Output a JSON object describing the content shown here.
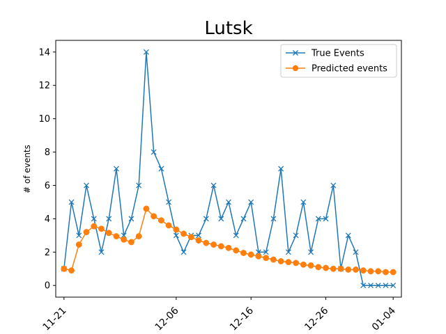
{
  "chart_data": {
    "type": "line",
    "title": "Lutsk",
    "xlabel": "",
    "ylabel": "# of events",
    "ylim": [
      -0.7,
      14.7
    ],
    "x_start": "2023-11-21",
    "x_tick_labels": [
      "11-21",
      "12-06",
      "12-16",
      "12-26",
      "01-04"
    ],
    "x_tick_dates": [
      "2023-11-21",
      "2023-12-06",
      "2023-12-16",
      "2023-12-26",
      "2024-01-04"
    ],
    "y_ticks": [
      0,
      2,
      4,
      6,
      8,
      10,
      12,
      14
    ],
    "grid": false,
    "legend_position": "top-right",
    "series": [
      {
        "name": "True Events",
        "color": "#1f77b4",
        "marker": "x",
        "values": [
          1,
          5,
          3,
          6,
          4,
          2,
          4,
          7,
          3,
          4,
          6,
          14,
          8,
          7,
          5,
          3,
          2,
          3,
          3,
          4,
          6,
          4,
          5,
          3,
          4,
          5,
          2,
          2,
          4,
          7,
          2,
          3,
          5,
          2,
          4,
          4,
          6,
          1,
          3,
          2,
          0,
          0,
          0,
          0,
          0
        ]
      },
      {
        "name": "Predicted events",
        "color": "#ff7f0e",
        "marker": "circle",
        "values": [
          1.0,
          0.9,
          2.45,
          3.2,
          3.55,
          3.4,
          3.15,
          2.95,
          2.75,
          2.6,
          2.95,
          4.6,
          4.15,
          3.9,
          3.6,
          3.35,
          3.1,
          2.9,
          2.7,
          2.55,
          2.45,
          2.35,
          2.25,
          2.1,
          1.95,
          1.85,
          1.75,
          1.65,
          1.55,
          1.45,
          1.4,
          1.35,
          1.25,
          1.2,
          1.1,
          1.05,
          1.0,
          1.0,
          0.95,
          0.95,
          0.9,
          0.85,
          0.85,
          0.8,
          0.8
        ]
      }
    ]
  }
}
